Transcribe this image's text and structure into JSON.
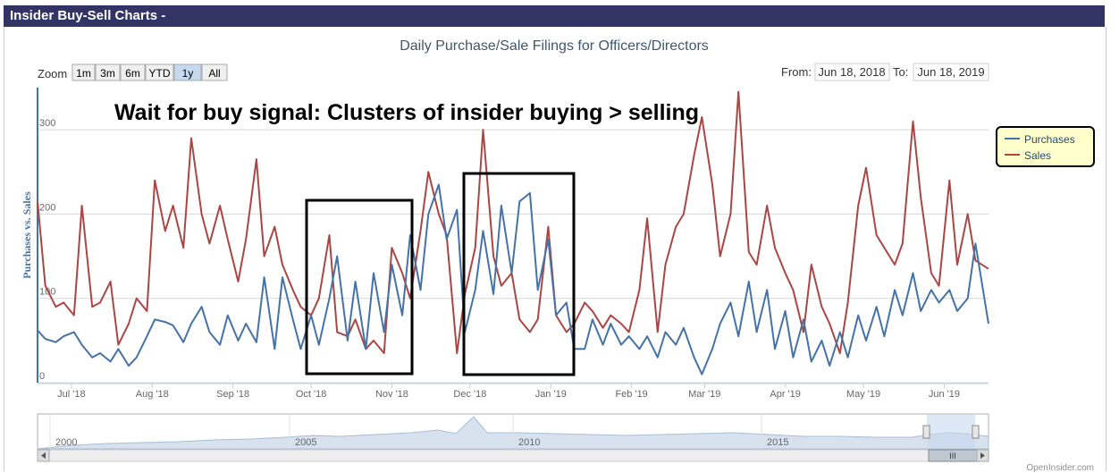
{
  "page": {
    "header_title": "Insider Buy-Sell Charts -",
    "credit": "OpenInsider.com"
  },
  "toolbar": {
    "zoom_label": "Zoom",
    "zoom_buttons": [
      "1m",
      "3m",
      "6m",
      "YTD",
      "1y",
      "All"
    ],
    "selected_zoom": "1y",
    "from_label": "From:",
    "from_value": "Jun 18, 2018",
    "to_label": "To:",
    "to_value": "Jun 18, 2019"
  },
  "annotation": "Wait for buy signal: Clusters of insider buying > selling",
  "colors": {
    "purchases": "#4572a7",
    "sales": "#aa4643",
    "header": "#333366",
    "legend_bg": "#ffffcc"
  },
  "navigator": {
    "year_labels": [
      "2000",
      "2005",
      "2010",
      "2015"
    ],
    "scrollbar_grip": "III"
  },
  "chart_data": {
    "type": "line",
    "title": "Daily Purchase/Sale Filings for Officers/Directors",
    "ylabel": "Purchases vs. Sales",
    "ylim": [
      0,
      350
    ],
    "y_ticks": [
      0,
      100,
      200,
      300
    ],
    "x_range": [
      "2018-06-18",
      "2019-06-18"
    ],
    "x_tick_labels": [
      "Jul '18",
      "Aug '18",
      "Sep '18",
      "Oct '18",
      "Nov '18",
      "Dec '18",
      "Jan '19",
      "Feb '19",
      "Mar '19",
      "Apr '19",
      "May '19",
      "Jun '19"
    ],
    "x_tick_dates": [
      "2018-07-01",
      "2018-08-01",
      "2018-09-01",
      "2018-10-01",
      "2018-11-01",
      "2018-12-01",
      "2019-01-01",
      "2019-02-01",
      "2019-03-01",
      "2019-04-01",
      "2019-05-01",
      "2019-06-01"
    ],
    "legend": {
      "position": "top-right",
      "entries": [
        "Purchases",
        "Sales"
      ]
    },
    "grid": true,
    "series": [
      {
        "name": "Purchases",
        "points": [
          [
            "2018-06-18",
            62
          ],
          [
            "2018-06-21",
            52
          ],
          [
            "2018-06-25",
            48
          ],
          [
            "2018-06-28",
            55
          ],
          [
            "2018-07-02",
            60
          ],
          [
            "2018-07-05",
            45
          ],
          [
            "2018-07-09",
            30
          ],
          [
            "2018-07-12",
            35
          ],
          [
            "2018-07-16",
            25
          ],
          [
            "2018-07-19",
            40
          ],
          [
            "2018-07-23",
            20
          ],
          [
            "2018-07-26",
            30
          ],
          [
            "2018-07-30",
            55
          ],
          [
            "2018-08-02",
            75
          ],
          [
            "2018-08-06",
            72
          ],
          [
            "2018-08-09",
            68
          ],
          [
            "2018-08-13",
            48
          ],
          [
            "2018-08-16",
            70
          ],
          [
            "2018-08-20",
            90
          ],
          [
            "2018-08-23",
            60
          ],
          [
            "2018-08-27",
            45
          ],
          [
            "2018-08-30",
            80
          ],
          [
            "2018-09-03",
            50
          ],
          [
            "2018-09-06",
            70
          ],
          [
            "2018-09-10",
            48
          ],
          [
            "2018-09-13",
            125
          ],
          [
            "2018-09-17",
            40
          ],
          [
            "2018-09-20",
            125
          ],
          [
            "2018-09-24",
            75
          ],
          [
            "2018-09-27",
            40
          ],
          [
            "2018-10-01",
            80
          ],
          [
            "2018-10-04",
            45
          ],
          [
            "2018-10-08",
            100
          ],
          [
            "2018-10-11",
            150
          ],
          [
            "2018-10-15",
            50
          ],
          [
            "2018-10-18",
            120
          ],
          [
            "2018-10-22",
            40
          ],
          [
            "2018-10-25",
            130
          ],
          [
            "2018-10-29",
            60
          ],
          [
            "2018-11-01",
            140
          ],
          [
            "2018-11-05",
            80
          ],
          [
            "2018-11-08",
            175
          ],
          [
            "2018-11-12",
            110
          ],
          [
            "2018-11-15",
            200
          ],
          [
            "2018-11-19",
            235
          ],
          [
            "2018-11-22",
            170
          ],
          [
            "2018-11-26",
            205
          ],
          [
            "2018-11-29",
            60
          ],
          [
            "2018-12-03",
            110
          ],
          [
            "2018-12-06",
            180
          ],
          [
            "2018-12-10",
            105
          ],
          [
            "2018-12-13",
            210
          ],
          [
            "2018-12-17",
            130
          ],
          [
            "2018-12-20",
            215
          ],
          [
            "2018-12-24",
            225
          ],
          [
            "2018-12-27",
            110
          ],
          [
            "2018-12-31",
            170
          ],
          [
            "2019-01-03",
            80
          ],
          [
            "2019-01-07",
            95
          ],
          [
            "2019-01-10",
            40
          ],
          [
            "2019-01-14",
            40
          ],
          [
            "2019-01-17",
            75
          ],
          [
            "2019-01-21",
            45
          ],
          [
            "2019-01-24",
            70
          ],
          [
            "2019-01-28",
            45
          ],
          [
            "2019-01-31",
            55
          ],
          [
            "2019-02-04",
            40
          ],
          [
            "2019-02-07",
            55
          ],
          [
            "2019-02-11",
            30
          ],
          [
            "2019-02-14",
            60
          ],
          [
            "2019-02-18",
            45
          ],
          [
            "2019-02-21",
            65
          ],
          [
            "2019-02-25",
            30
          ],
          [
            "2019-02-28",
            10
          ],
          [
            "2019-03-04",
            40
          ],
          [
            "2019-03-07",
            70
          ],
          [
            "2019-03-11",
            95
          ],
          [
            "2019-03-14",
            55
          ],
          [
            "2019-03-18",
            120
          ],
          [
            "2019-03-21",
            60
          ],
          [
            "2019-03-25",
            110
          ],
          [
            "2019-03-28",
            40
          ],
          [
            "2019-04-01",
            85
          ],
          [
            "2019-04-04",
            30
          ],
          [
            "2019-04-08",
            75
          ],
          [
            "2019-04-11",
            25
          ],
          [
            "2019-04-15",
            50
          ],
          [
            "2019-04-18",
            20
          ],
          [
            "2019-04-22",
            60
          ],
          [
            "2019-04-25",
            30
          ],
          [
            "2019-04-29",
            80
          ],
          [
            "2019-05-02",
            50
          ],
          [
            "2019-05-06",
            90
          ],
          [
            "2019-05-09",
            55
          ],
          [
            "2019-05-13",
            110
          ],
          [
            "2019-05-16",
            80
          ],
          [
            "2019-05-20",
            130
          ],
          [
            "2019-05-23",
            85
          ],
          [
            "2019-05-27",
            110
          ],
          [
            "2019-05-30",
            95
          ],
          [
            "2019-06-03",
            110
          ],
          [
            "2019-06-06",
            85
          ],
          [
            "2019-06-10",
            100
          ],
          [
            "2019-06-13",
            165
          ],
          [
            "2019-06-18",
            70
          ]
        ]
      },
      {
        "name": "Sales",
        "points": [
          [
            "2018-06-18",
            215
          ],
          [
            "2018-06-21",
            115
          ],
          [
            "2018-06-25",
            90
          ],
          [
            "2018-06-28",
            95
          ],
          [
            "2018-07-02",
            80
          ],
          [
            "2018-07-05",
            210
          ],
          [
            "2018-07-09",
            90
          ],
          [
            "2018-07-12",
            95
          ],
          [
            "2018-07-16",
            120
          ],
          [
            "2018-07-19",
            45
          ],
          [
            "2018-07-23",
            70
          ],
          [
            "2018-07-26",
            100
          ],
          [
            "2018-07-30",
            85
          ],
          [
            "2018-08-02",
            240
          ],
          [
            "2018-08-06",
            180
          ],
          [
            "2018-08-09",
            210
          ],
          [
            "2018-08-13",
            160
          ],
          [
            "2018-08-16",
            290
          ],
          [
            "2018-08-20",
            200
          ],
          [
            "2018-08-23",
            165
          ],
          [
            "2018-08-27",
            210
          ],
          [
            "2018-08-30",
            170
          ],
          [
            "2018-09-03",
            120
          ],
          [
            "2018-09-06",
            170
          ],
          [
            "2018-09-10",
            265
          ],
          [
            "2018-09-13",
            150
          ],
          [
            "2018-09-17",
            185
          ],
          [
            "2018-09-20",
            140
          ],
          [
            "2018-09-24",
            110
          ],
          [
            "2018-09-27",
            90
          ],
          [
            "2018-10-01",
            80
          ],
          [
            "2018-10-04",
            100
          ],
          [
            "2018-10-08",
            175
          ],
          [
            "2018-10-11",
            60
          ],
          [
            "2018-10-15",
            55
          ],
          [
            "2018-10-18",
            75
          ],
          [
            "2018-10-22",
            40
          ],
          [
            "2018-10-25",
            50
          ],
          [
            "2018-10-29",
            35
          ],
          [
            "2018-11-01",
            160
          ],
          [
            "2018-11-05",
            130
          ],
          [
            "2018-11-08",
            100
          ],
          [
            "2018-11-12",
            180
          ],
          [
            "2018-11-15",
            250
          ],
          [
            "2018-11-19",
            200
          ],
          [
            "2018-11-22",
            175
          ],
          [
            "2018-11-26",
            35
          ],
          [
            "2018-11-29",
            105
          ],
          [
            "2018-12-03",
            160
          ],
          [
            "2018-12-06",
            300
          ],
          [
            "2018-12-10",
            150
          ],
          [
            "2018-12-13",
            115
          ],
          [
            "2018-12-17",
            130
          ],
          [
            "2018-12-20",
            75
          ],
          [
            "2018-12-24",
            60
          ],
          [
            "2018-12-27",
            75
          ],
          [
            "2018-12-31",
            185
          ],
          [
            "2019-01-03",
            80
          ],
          [
            "2019-01-07",
            60
          ],
          [
            "2019-01-10",
            70
          ],
          [
            "2019-01-14",
            95
          ],
          [
            "2019-01-17",
            85
          ],
          [
            "2019-01-21",
            65
          ],
          [
            "2019-01-24",
            80
          ],
          [
            "2019-01-28",
            70
          ],
          [
            "2019-01-31",
            60
          ],
          [
            "2019-02-04",
            110
          ],
          [
            "2019-02-07",
            195
          ],
          [
            "2019-02-11",
            60
          ],
          [
            "2019-02-14",
            140
          ],
          [
            "2019-02-18",
            185
          ],
          [
            "2019-02-21",
            200
          ],
          [
            "2019-02-25",
            270
          ],
          [
            "2019-02-28",
            315
          ],
          [
            "2019-03-04",
            235
          ],
          [
            "2019-03-07",
            150
          ],
          [
            "2019-03-11",
            200
          ],
          [
            "2019-03-14",
            345
          ],
          [
            "2019-03-18",
            155
          ],
          [
            "2019-03-21",
            140
          ],
          [
            "2019-03-25",
            210
          ],
          [
            "2019-03-28",
            160
          ],
          [
            "2019-04-01",
            130
          ],
          [
            "2019-04-04",
            110
          ],
          [
            "2019-04-08",
            60
          ],
          [
            "2019-04-11",
            140
          ],
          [
            "2019-04-15",
            90
          ],
          [
            "2019-04-18",
            70
          ],
          [
            "2019-04-22",
            35
          ],
          [
            "2019-04-25",
            95
          ],
          [
            "2019-04-29",
            210
          ],
          [
            "2019-05-02",
            255
          ],
          [
            "2019-05-06",
            175
          ],
          [
            "2019-05-09",
            160
          ],
          [
            "2019-05-13",
            140
          ],
          [
            "2019-05-16",
            165
          ],
          [
            "2019-05-20",
            310
          ],
          [
            "2019-05-23",
            220
          ],
          [
            "2019-05-27",
            130
          ],
          [
            "2019-05-30",
            115
          ],
          [
            "2019-06-03",
            240
          ],
          [
            "2019-06-06",
            140
          ],
          [
            "2019-06-10",
            200
          ],
          [
            "2019-06-13",
            145
          ],
          [
            "2019-06-18",
            135
          ]
        ]
      }
    ]
  }
}
